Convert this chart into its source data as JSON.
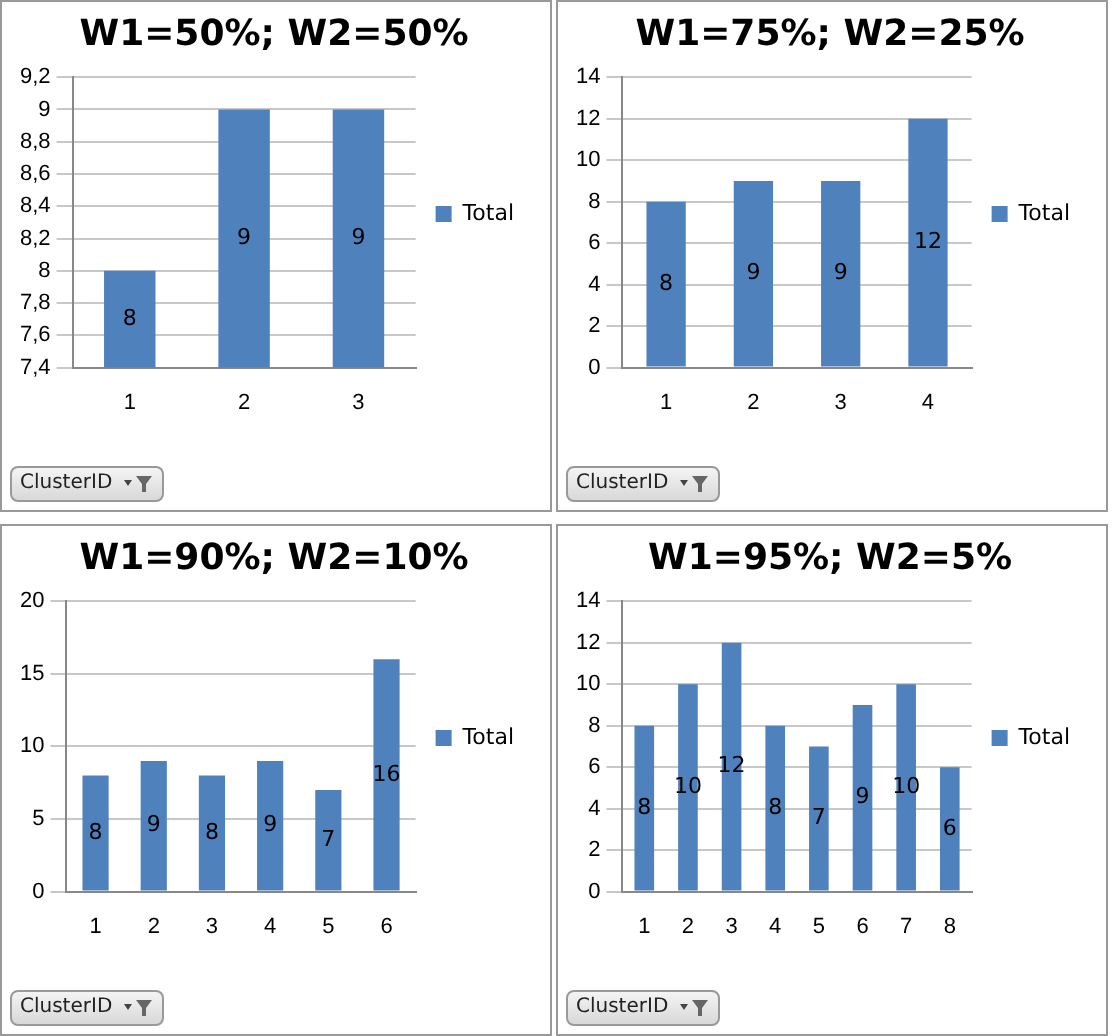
{
  "chart_data": [
    {
      "type": "bar",
      "title": "W1=50%; W2=50%",
      "xlabel": "ClusterID",
      "categories": [
        "1",
        "2",
        "3"
      ],
      "series": [
        {
          "name": "Total",
          "color": "#4f81bd",
          "values": [
            8,
            9,
            9
          ]
        }
      ],
      "ylim": [
        7.4,
        9.2
      ],
      "yticks": [
        {
          "value": 7.4,
          "label": "7,4"
        },
        {
          "value": 7.6,
          "label": "7,6"
        },
        {
          "value": 7.8,
          "label": "7,8"
        },
        8,
        {
          "value": 8.2,
          "label": "8,2"
        },
        {
          "value": 8.4,
          "label": "8,4"
        },
        {
          "value": 8.6,
          "label": "8,6"
        },
        {
          "value": 8.8,
          "label": "8,8"
        },
        9,
        {
          "value": 9.2,
          "label": "9,2"
        }
      ],
      "grid": "y",
      "legend": "right",
      "data_labels": true
    },
    {
      "type": "bar",
      "title": "W1=75%; W2=25%",
      "xlabel": "ClusterID",
      "categories": [
        "1",
        "2",
        "3",
        "4"
      ],
      "series": [
        {
          "name": "Total",
          "color": "#4f81bd",
          "values": [
            8,
            9,
            9,
            12
          ]
        }
      ],
      "ylim": [
        0,
        14
      ],
      "yticks": [
        0,
        2,
        4,
        6,
        8,
        10,
        12,
        14
      ],
      "grid": "y",
      "legend": "right",
      "data_labels": true
    },
    {
      "type": "bar",
      "title": "W1=90%; W2=10%",
      "xlabel": "ClusterID",
      "categories": [
        "1",
        "2",
        "3",
        "4",
        "5",
        "6"
      ],
      "series": [
        {
          "name": "Total",
          "color": "#4f81bd",
          "values": [
            8,
            9,
            8,
            9,
            7,
            16
          ]
        }
      ],
      "ylim": [
        0,
        20
      ],
      "yticks": [
        0,
        5,
        10,
        15,
        20
      ],
      "grid": "y",
      "legend": "right",
      "data_labels": true
    },
    {
      "type": "bar",
      "title": "W1=95%; W2=5%",
      "xlabel": "ClusterID",
      "categories": [
        "1",
        "2",
        "3",
        "4",
        "5",
        "6",
        "7",
        "8"
      ],
      "series": [
        {
          "name": "Total",
          "color": "#4f81bd",
          "values": [
            8,
            10,
            12,
            8,
            7,
            9,
            10,
            6
          ]
        }
      ],
      "ylim": [
        0,
        14
      ],
      "yticks": [
        0,
        2,
        4,
        6,
        8,
        10,
        12,
        14
      ],
      "grid": "y",
      "legend": "right",
      "data_labels": true
    }
  ]
}
